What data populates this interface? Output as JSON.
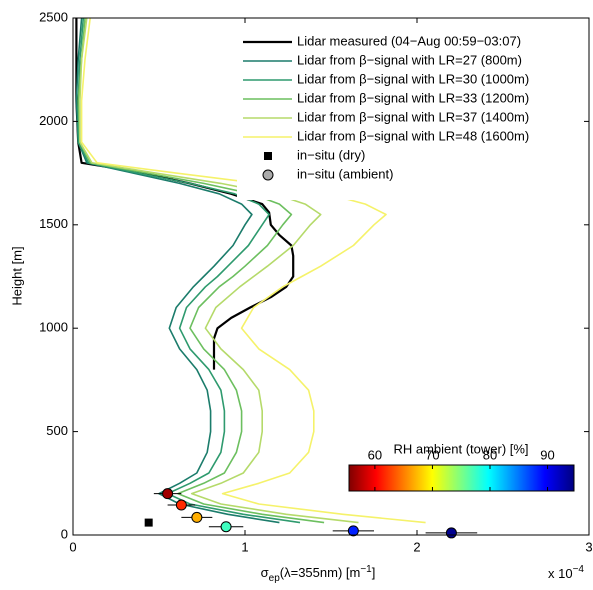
{
  "chart_data": {
    "type": "line",
    "xlabel": {
      "main": "σ",
      "sub": "ep",
      "mid": "(λ=355nm) [m",
      "sup": "−1",
      "end": "]"
    },
    "ylabel": "Height [m]",
    "x_multiplier": {
      "base": "x 10",
      "exp": "−4"
    },
    "xlim": [
      0,
      3
    ],
    "xticks": [
      0,
      1,
      2,
      3
    ],
    "ylim": [
      0,
      2500
    ],
    "yticks": [
      0,
      500,
      1000,
      1500,
      2000,
      2500
    ],
    "legend": "upper right",
    "series": [
      {
        "name": "Lidar measured (04−Aug 00:59−03:07)",
        "color": "#000000",
        "width": 2.2,
        "y": [
          2500,
          2300,
          2100,
          1900,
          1800,
          1780,
          1750,
          1700,
          1650,
          1600,
          1560,
          1500,
          1450,
          1400,
          1350,
          1300,
          1250,
          1200,
          1150,
          1100,
          1050,
          1000,
          950,
          900,
          850,
          800
        ],
        "x": [
          0.02,
          0.02,
          0.02,
          0.03,
          0.05,
          0.2,
          0.4,
          0.68,
          0.92,
          1.1,
          1.14,
          1.15,
          1.2,
          1.27,
          1.28,
          1.28,
          1.28,
          1.24,
          1.15,
          1.03,
          0.92,
          0.84,
          0.82,
          0.82,
          0.82,
          0.82
        ]
      },
      {
        "name": "Lidar from β−signal with LR=27 (800m)",
        "color": "#1b7c6b",
        "width": 1.6,
        "y": [
          2500,
          2300,
          2100,
          1900,
          1800,
          1750,
          1700,
          1650,
          1600,
          1550,
          1500,
          1400,
          1300,
          1250,
          1200,
          1100,
          1000,
          900,
          800,
          700,
          600,
          500,
          400,
          300,
          250,
          200,
          150,
          100,
          60
        ],
        "x": [
          0.05,
          0.03,
          0.02,
          0.03,
          0.08,
          0.35,
          0.62,
          0.85,
          0.98,
          1.04,
          1.0,
          0.93,
          0.82,
          0.76,
          0.7,
          0.6,
          0.56,
          0.62,
          0.72,
          0.78,
          0.8,
          0.8,
          0.78,
          0.72,
          0.62,
          0.5,
          0.62,
          0.9,
          1.2
        ]
      },
      {
        "name": "Lidar from β−signal with LR=30 (1000m)",
        "color": "#2e9a6e",
        "width": 1.6,
        "y": [
          2500,
          2300,
          2100,
          1900,
          1800,
          1750,
          1700,
          1650,
          1600,
          1550,
          1500,
          1400,
          1300,
          1250,
          1200,
          1100,
          1000,
          900,
          800,
          700,
          600,
          500,
          400,
          300,
          250,
          200,
          150,
          100,
          60
        ],
        "x": [
          0.06,
          0.04,
          0.03,
          0.03,
          0.09,
          0.38,
          0.68,
          0.94,
          1.08,
          1.14,
          1.1,
          1.02,
          0.9,
          0.84,
          0.77,
          0.66,
          0.62,
          0.68,
          0.79,
          0.86,
          0.88,
          0.88,
          0.86,
          0.79,
          0.68,
          0.55,
          0.68,
          0.99,
          1.32
        ]
      },
      {
        "name": "Lidar from β−signal with LR=33 (1200m)",
        "color": "#6cbf5f",
        "width": 1.6,
        "y": [
          2500,
          2300,
          2100,
          1900,
          1800,
          1750,
          1700,
          1650,
          1600,
          1550,
          1500,
          1400,
          1300,
          1250,
          1200,
          1100,
          1000,
          900,
          800,
          700,
          600,
          500,
          400,
          300,
          250,
          200,
          150,
          100,
          60
        ],
        "x": [
          0.07,
          0.05,
          0.03,
          0.04,
          0.1,
          0.43,
          0.76,
          1.04,
          1.2,
          1.27,
          1.22,
          1.13,
          1.0,
          0.93,
          0.85,
          0.73,
          0.68,
          0.76,
          0.88,
          0.95,
          0.98,
          0.98,
          0.95,
          0.88,
          0.76,
          0.61,
          0.76,
          1.1,
          1.46
        ]
      },
      {
        "name": "Lidar from β−signal with LR=37 (1400m)",
        "color": "#b5da6a",
        "width": 1.6,
        "y": [
          2500,
          2300,
          2100,
          1900,
          1800,
          1750,
          1700,
          1650,
          1600,
          1550,
          1500,
          1400,
          1300,
          1250,
          1200,
          1100,
          1000,
          900,
          800,
          700,
          600,
          500,
          400,
          300,
          250,
          200,
          150,
          100,
          60
        ],
        "x": [
          0.08,
          0.05,
          0.04,
          0.04,
          0.11,
          0.48,
          0.86,
          1.17,
          1.35,
          1.44,
          1.38,
          1.28,
          1.13,
          1.05,
          0.97,
          0.83,
          0.77,
          0.86,
          0.99,
          1.08,
          1.1,
          1.1,
          1.08,
          0.99,
          0.86,
          0.69,
          0.86,
          1.24,
          1.66
        ]
      },
      {
        "name": "Lidar from β−signal with LR=48 (1600m)",
        "color": "#f5f26a",
        "width": 1.6,
        "y": [
          2500,
          2300,
          2100,
          1900,
          1800,
          1750,
          1700,
          1650,
          1600,
          1550,
          1500,
          1400,
          1300,
          1250,
          1200,
          1100,
          1000,
          900,
          800,
          700,
          600,
          500,
          400,
          300,
          250,
          200,
          150,
          100,
          60
        ],
        "x": [
          0.1,
          0.07,
          0.05,
          0.05,
          0.14,
          0.6,
          1.08,
          1.48,
          1.7,
          1.82,
          1.75,
          1.63,
          1.44,
          1.33,
          1.22,
          1.05,
          0.98,
          1.08,
          1.26,
          1.37,
          1.4,
          1.4,
          1.37,
          1.26,
          1.08,
          0.87,
          1.08,
          1.57,
          2.05
        ]
      }
    ],
    "points": [
      {
        "name": "in−situ (dry)",
        "marker": "square",
        "color": "#000000",
        "x": [
          0.44
        ],
        "y": [
          60
        ]
      },
      {
        "name": "in−situ (ambient)",
        "marker": "circle",
        "color": "#aaaaaa",
        "x": [
          0.55,
          0.63,
          0.72,
          0.89,
          1.63,
          2.2
        ],
        "y": [
          200,
          145,
          85,
          40,
          20,
          10
        ],
        "xerr": [
          0.08,
          0.08,
          0.09,
          0.1,
          0.12,
          0.15
        ],
        "point_colors": [
          "#a00000",
          "#ff2a00",
          "#ffae00",
          "#3fffc0",
          "#0020ff",
          "#000090"
        ]
      }
    ],
    "colorbar": {
      "label": "RH ambient (tower) [%]",
      "lim": [
        55.5,
        94.6
      ],
      "ticks": [
        60,
        70,
        80,
        90
      ]
    }
  }
}
